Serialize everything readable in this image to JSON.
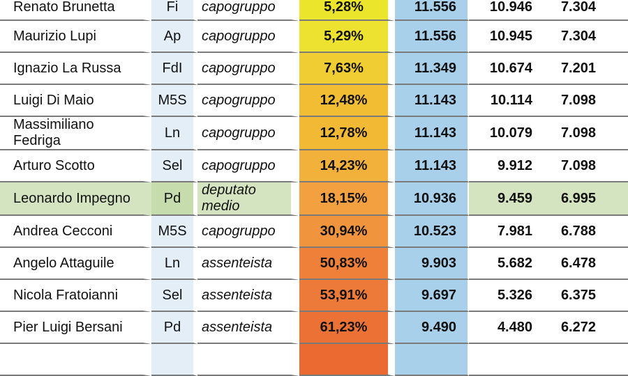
{
  "table": {
    "rows": [
      {
        "name": "Renato Brunetta",
        "party": "Fi",
        "role": "capogruppo",
        "absence": "5,28%",
        "n1": "11.556",
        "n2": "10.946",
        "n3": "7.304",
        "highlight": false
      },
      {
        "name": "Maurizio Lupi",
        "party": "Ap",
        "role": "capogruppo",
        "absence": "5,29%",
        "n1": "11.556",
        "n2": "10.945",
        "n3": "7.304",
        "highlight": false
      },
      {
        "name": "Ignazio La Russa",
        "party": "FdI",
        "role": "capogruppo",
        "absence": "7,63%",
        "n1": "11.349",
        "n2": "10.674",
        "n3": "7.201",
        "highlight": false
      },
      {
        "name": "Luigi Di Maio",
        "party": "M5S",
        "role": "capogruppo",
        "absence": "12,48%",
        "n1": "11.143",
        "n2": "10.114",
        "n3": "7.098",
        "highlight": false
      },
      {
        "name": "Massimiliano Fedriga",
        "party": "Ln",
        "role": "capogruppo",
        "absence": "12,78%",
        "n1": "11.143",
        "n2": "10.079",
        "n3": "7.098",
        "highlight": false
      },
      {
        "name": "Arturo Scotto",
        "party": "Sel",
        "role": "capogruppo",
        "absence": "14,23%",
        "n1": "11.143",
        "n2": "9.912",
        "n3": "7.098",
        "highlight": false
      },
      {
        "name": "Leonardo Impegno",
        "party": "Pd",
        "role": "deputato medio",
        "absence": "18,15%",
        "n1": "10.936",
        "n2": "9.459",
        "n3": "6.995",
        "highlight": true
      },
      {
        "name": "Andrea Cecconi",
        "party": "M5S",
        "role": "capogruppo",
        "absence": "30,94%",
        "n1": "10.523",
        "n2": "7.981",
        "n3": "6.788",
        "highlight": false
      },
      {
        "name": "Angelo Attaguile",
        "party": "Ln",
        "role": "assenteista",
        "absence": "50,83%",
        "n1": "9.903",
        "n2": "5.682",
        "n3": "6.478",
        "highlight": false
      },
      {
        "name": "Nicola Fratoianni",
        "party": "Sel",
        "role": "assenteista",
        "absence": "53,91%",
        "n1": "9.697",
        "n2": "5.326",
        "n3": "6.375",
        "highlight": false
      },
      {
        "name": "Pier Luigi Bersani",
        "party": "Pd",
        "role": "assenteista",
        "absence": "61,23%",
        "n1": "9.490",
        "n2": "4.480",
        "n3": "6.272",
        "highlight": false
      }
    ]
  },
  "colors": {
    "highlight_row": "#d5e4c0",
    "party_cell": "#e4eef7",
    "blue_column": "#a9d0ea",
    "absence_gradient": [
      "#ebe52c",
      "#ece22f",
      "#f0ce33",
      "#f2bd33",
      "#f2b934",
      "#f2b13a",
      "#f3a040",
      "#f0943e",
      "#ee8039",
      "#ed7a38",
      "#ec7134",
      "#eb6a32"
    ]
  }
}
